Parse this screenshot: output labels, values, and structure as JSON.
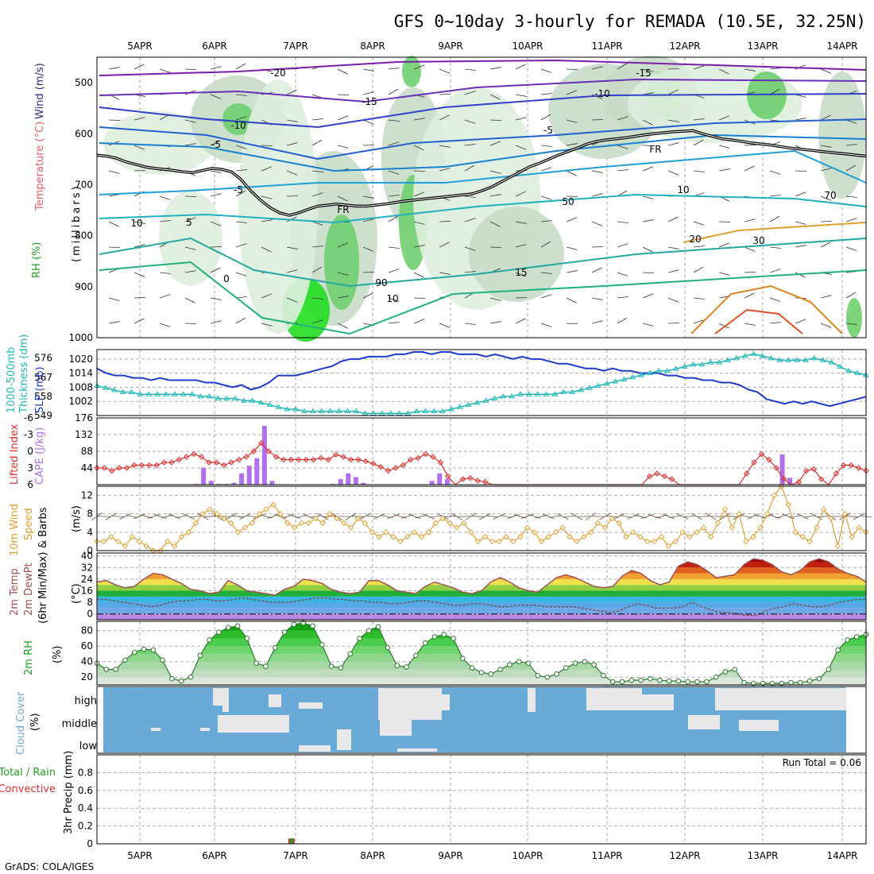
{
  "title": "GFS 0~10day 3-hourly for REMADA (10.5E, 32.25N)",
  "footer": "GrADS: COLA/IGES",
  "run_total": "Run Total = 0.06",
  "dates": [
    "5APR",
    "6APR",
    "7APR",
    "8APR",
    "9APR",
    "10APR",
    "11APR",
    "12APR",
    "13APR",
    "14APR"
  ],
  "colors": {
    "slp": "#1c3cc8",
    "thickness": "#20b8b8",
    "lifted_index": "#e03030",
    "cape": "#b070f0",
    "wind": "#e0a030",
    "temp_line": "#a05050",
    "rh": "#20a020",
    "cloud": "#6aaad6",
    "cloud_gap": "#e8e8ea"
  },
  "panels": {
    "upper": {
      "ylabel_rh": "RH (%)",
      "ylabel_temp": "Temperature (°C)",
      "ylabel_wind": "Wind (m/s)",
      "ylabel_units": "(millibars)",
      "contour_labels": [
        "-20",
        "-15",
        "-15",
        "-10",
        "-10",
        "-5",
        "-5",
        "-5",
        "0",
        "5",
        "10",
        "10",
        "15",
        "20",
        "10",
        "FR",
        "FR",
        "30",
        "50",
        "70",
        "90"
      ]
    },
    "slp": {
      "label_left": "1000-500mb",
      "label_left2": "Thickness (dm)",
      "label_right": "SLP (mb)"
    },
    "cape": {
      "label_left": "Lifted Index",
      "label_right": "CAPE (J/kg)"
    },
    "wind10": {
      "label1": "10m Wind",
      "label2": "Speed",
      "label3": "& Barbs",
      "units": "(m/s)"
    },
    "temp": {
      "label1": "2m Temp",
      "label2": "2m DewPt",
      "label3": "(6hr Min/Max)",
      "units": "(°C)"
    },
    "rh": {
      "label1": "2m RH",
      "units": "(%)"
    },
    "cloud": {
      "label1": "Cloud Cover",
      "units": "(%)",
      "levels": [
        "high",
        "middle",
        "low"
      ]
    },
    "precip": {
      "label1": "Total / Rain",
      "label2": "Convective",
      "label3": "3hr Precip (mm)"
    }
  },
  "chart_data": [
    {
      "type": "contour",
      "panel": "pressure-time cross-section",
      "yticks": [
        "500",
        "600",
        "700",
        "800",
        "900",
        "1000"
      ],
      "freezing_level_mb": [
        642,
        644,
        648,
        655,
        660,
        665,
        668,
        670,
        672,
        675,
        676,
        672,
        668,
        670,
        675,
        690,
        712,
        730,
        745,
        755,
        760,
        755,
        748,
        742,
        740,
        738,
        740,
        742,
        742,
        740,
        738,
        735,
        732,
        730,
        728,
        726,
        724,
        722,
        720,
        718,
        712,
        705,
        695,
        685,
        675,
        665,
        658,
        650,
        642,
        635,
        628,
        620,
        615,
        612,
        610,
        608,
        605,
        602,
        600,
        598,
        596,
        595,
        594,
        600,
        605,
        610,
        612,
        615,
        618,
        620,
        622,
        625,
        628,
        630,
        632,
        634,
        636,
        638,
        640,
        642,
        644
      ]
    },
    {
      "type": "line",
      "panel": "SLP / thickness",
      "yticks_left": [
        "549",
        "558",
        "567",
        "576"
      ],
      "yticks_right": [
        "1002",
        "1008",
        "1014",
        "1020"
      ],
      "series": [
        {
          "name": "SLP (mb)",
          "values": [
            1016,
            1014,
            1013,
            1013,
            1012,
            1012,
            1011,
            1012,
            1011,
            1011,
            1011,
            1011,
            1010,
            1010,
            1009,
            1008,
            1009,
            1007,
            1008,
            1010,
            1013,
            1013,
            1013,
            1014,
            1015,
            1016,
            1017,
            1019,
            1020,
            1020,
            1021,
            1021,
            1021,
            1022,
            1022,
            1023,
            1023,
            1022,
            1023,
            1023,
            1022,
            1022,
            1022,
            1021,
            1022,
            1021,
            1020,
            1021,
            1020,
            1020,
            1019,
            1018,
            1018,
            1017,
            1016,
            1016,
            1015,
            1016,
            1015,
            1015,
            1014,
            1014,
            1014,
            1013,
            1013,
            1012,
            1012,
            1011,
            1011,
            1010,
            1010,
            1009,
            1007,
            1006,
            1003,
            1002,
            1001,
            1002,
            1001,
            1002,
            1001,
            1000,
            1001,
            1002,
            1003,
            1004
          ]
        },
        {
          "name": "Thickness (dm)",
          "values": [
            563,
            562,
            561,
            560,
            560,
            559,
            559,
            559,
            559,
            559,
            559,
            559,
            558,
            558,
            557,
            557,
            557,
            556,
            556,
            555,
            554,
            553,
            552,
            552,
            551,
            551,
            551,
            551,
            551,
            551,
            551,
            550,
            550,
            550,
            550,
            550,
            550,
            551,
            551,
            551,
            551,
            552,
            553,
            554,
            555,
            556,
            557,
            558,
            558,
            559,
            559,
            559,
            559,
            559,
            560,
            560,
            561,
            562,
            563,
            564,
            565,
            566,
            567,
            568,
            569,
            570,
            570,
            571,
            572,
            573,
            573,
            574,
            574,
            575,
            576,
            577,
            578,
            577,
            576,
            575,
            575,
            575,
            575,
            576,
            575,
            574,
            572,
            570,
            569,
            568
          ]
        }
      ]
    },
    {
      "type": "bar",
      "panel": "Lifted Index / CAPE",
      "yticks_left": [
        "-6",
        "-3",
        "0",
        "3",
        "6"
      ],
      "yticks_right": [
        "44",
        "88",
        "132",
        "176"
      ],
      "series": [
        {
          "name": "CAPE (J/kg)",
          "values": [
            0,
            0,
            0,
            0,
            0,
            0,
            0,
            0,
            0,
            0,
            0,
            0,
            0,
            2,
            45,
            10,
            2,
            2,
            5,
            30,
            50,
            70,
            155,
            10,
            0,
            0,
            0,
            0,
            0,
            0,
            0,
            2,
            15,
            30,
            20,
            5,
            0,
            0,
            0,
            0,
            0,
            0,
            0,
            0,
            10,
            30,
            15,
            0,
            0,
            0,
            0,
            0,
            0,
            0,
            0,
            0,
            0,
            0,
            0,
            0,
            0,
            0,
            0,
            0,
            0,
            0,
            0,
            0,
            0,
            0,
            0,
            0,
            0,
            0,
            0,
            0,
            0,
            0,
            0,
            0,
            0,
            0,
            0,
            0,
            0,
            0,
            0,
            0,
            0,
            0,
            80,
            18,
            0,
            0,
            0,
            0,
            0,
            0,
            0,
            0,
            0,
            0
          ]
        },
        {
          "name": "Lifted Index",
          "values": [
            3,
            3,
            3.5,
            3,
            3,
            2.5,
            2.5,
            2.5,
            2.5,
            2,
            2,
            1.5,
            1,
            0.5,
            1,
            2,
            2,
            2.5,
            2,
            1.5,
            1,
            0,
            -1.5,
            0,
            1,
            1.5,
            1.5,
            1.5,
            1.5,
            1.5,
            1.2,
            1.5,
            0.6,
            1,
            1.5,
            1.5,
            1.8,
            2.2,
            2.8,
            3.5,
            3,
            2.5,
            1.5,
            1.2,
            0.5,
            1,
            2,
            4.5,
            6,
            5,
            4.8,
            5.3,
            5.5,
            6,
            7,
            7,
            7,
            7,
            7,
            7,
            7,
            7,
            7,
            7,
            7,
            7,
            7,
            7,
            7,
            7,
            7,
            7,
            7,
            7,
            4.5,
            4,
            4.5,
            5,
            6.5,
            7,
            7,
            7,
            7,
            7,
            7,
            7,
            7,
            4,
            2,
            0.5,
            1.5,
            3,
            5,
            7,
            5.5,
            3.5,
            3.2,
            5,
            7,
            4,
            2.5,
            2.5,
            3,
            3.5
          ]
        }
      ]
    },
    {
      "type": "line",
      "panel": "10m wind speed",
      "yticks": [
        "0",
        "4",
        "8",
        "12"
      ],
      "values": [
        2,
        2,
        3,
        2,
        1,
        3,
        2,
        1,
        0,
        0,
        2,
        1,
        3,
        4,
        6,
        8,
        9,
        8,
        7,
        6,
        4,
        5,
        6,
        8,
        9,
        10,
        8,
        6,
        5,
        6,
        6,
        7,
        6,
        8,
        7,
        6,
        5,
        7,
        6,
        4,
        3,
        4,
        3,
        2,
        3,
        4,
        3,
        4,
        6,
        7,
        6,
        5,
        6,
        4,
        2,
        3,
        2,
        2,
        3,
        2,
        3,
        5,
        4,
        2,
        3,
        4,
        5,
        3,
        2,
        3,
        4,
        6,
        5,
        7,
        6,
        3,
        4,
        3,
        2,
        2,
        3,
        1,
        2,
        4,
        3,
        4,
        5,
        3,
        6,
        9,
        5,
        8,
        2,
        3,
        5,
        8,
        12,
        14,
        10,
        4,
        3,
        2,
        5,
        9,
        7,
        1,
        8,
        3,
        5,
        4
      ]
    },
    {
      "type": "area",
      "panel": "2m temp / dewpoint",
      "yticks": [
        "0",
        "8",
        "16",
        "24",
        "32",
        "40"
      ],
      "series": [
        {
          "name": "2m Temp",
          "values": [
            22,
            23,
            20,
            18,
            19,
            24,
            28,
            27,
            24,
            21,
            17,
            16,
            14,
            15,
            23,
            20,
            16,
            15,
            14,
            13,
            17,
            19,
            24,
            23,
            21,
            17,
            15,
            14,
            15,
            23,
            23,
            20,
            16,
            15,
            14,
            19,
            22,
            20,
            18,
            15,
            14,
            16,
            22,
            25,
            22,
            18,
            16,
            15,
            20,
            25,
            27,
            25,
            22,
            19,
            18,
            19,
            26,
            30,
            28,
            23,
            20,
            22,
            33,
            36,
            34,
            30,
            25,
            26,
            27,
            34,
            38,
            37,
            34,
            29,
            27,
            30,
            36,
            38,
            36,
            31,
            28,
            26,
            22
          ]
        },
        {
          "name": "2m DewPt",
          "values": [
            10,
            10,
            9,
            8,
            7,
            6,
            5,
            6,
            8,
            9,
            9,
            10,
            10,
            9,
            9,
            10,
            11,
            10,
            9,
            8,
            8,
            8,
            9,
            10,
            11,
            11,
            10,
            10,
            9,
            9,
            8,
            8,
            7,
            7,
            8,
            9,
            9,
            8,
            7,
            6,
            6,
            7,
            7,
            6,
            5,
            5,
            6,
            6,
            6,
            5,
            5,
            5,
            5,
            4,
            3,
            2,
            1,
            2,
            5,
            7,
            6,
            4,
            4,
            4,
            5,
            8,
            5,
            3,
            1,
            1,
            0,
            -1,
            -1,
            2,
            4,
            5,
            7,
            6,
            5,
            5,
            6,
            8,
            9,
            10,
            10
          ]
        }
      ]
    },
    {
      "type": "area",
      "panel": "2m RH",
      "yticks": [
        "20",
        "40",
        "60",
        "80"
      ],
      "values": [
        38,
        30,
        30,
        42,
        52,
        56,
        55,
        42,
        18,
        15,
        20,
        48,
        68,
        78,
        84,
        86,
        70,
        38,
        34,
        58,
        78,
        88,
        90,
        86,
        62,
        34,
        32,
        50,
        70,
        80,
        85,
        58,
        35,
        33,
        48,
        64,
        72,
        75,
        70,
        44,
        32,
        26,
        24,
        30,
        36,
        40,
        38,
        22,
        20,
        24,
        32,
        38,
        40,
        36,
        22,
        14,
        14,
        16,
        16,
        18,
        16,
        15,
        15,
        14,
        14,
        14,
        20,
        27,
        30,
        13,
        12,
        12,
        12,
        12,
        13,
        13,
        15,
        18,
        30,
        55,
        68,
        72,
        75
      ]
    },
    {
      "type": "heatmap",
      "panel": "cloud cover",
      "levels": [
        "high",
        "middle",
        "low"
      ],
      "values": [
        0,
        0,
        0,
        0,
        0,
        0,
        0,
        0,
        0,
        0,
        0,
        0,
        0,
        0,
        0,
        0,
        0,
        0,
        0,
        0,
        0,
        0,
        0,
        0,
        0,
        0,
        0,
        0,
        0,
        0,
        0,
        0,
        0,
        0,
        0,
        0,
        0,
        0,
        0,
        0,
        0,
        0,
        0,
        0,
        0,
        0,
        0,
        0,
        0,
        0,
        0,
        0,
        0,
        0,
        0,
        0,
        0,
        0,
        0,
        0,
        0,
        0,
        0,
        0,
        0,
        0,
        0,
        0,
        0,
        0,
        0,
        0,
        0,
        0,
        0,
        0,
        0,
        0,
        0,
        0,
        0,
        0,
        0,
        0,
        0,
        0,
        0,
        0,
        0,
        0,
        0,
        0,
        0,
        0,
        0,
        0,
        0,
        0,
        0,
        0
      ]
    },
    {
      "type": "bar",
      "panel": "3hr precip",
      "yticks": [
        "0",
        "0.2",
        "0.4",
        "0.6",
        "0.8"
      ],
      "values": [
        0,
        0,
        0,
        0,
        0,
        0,
        0,
        0,
        0,
        0,
        0,
        0,
        0,
        0,
        0,
        0,
        0,
        0,
        0,
        0,
        0,
        0.06,
        0,
        0,
        0,
        0,
        0,
        0,
        0,
        0,
        0,
        0,
        0,
        0,
        0,
        0,
        0,
        0,
        0,
        0,
        0,
        0,
        0,
        0,
        0,
        0,
        0,
        0,
        0,
        0,
        0,
        0,
        0,
        0,
        0,
        0,
        0,
        0,
        0,
        0,
        0,
        0,
        0,
        0,
        0,
        0,
        0,
        0,
        0,
        0,
        0,
        0,
        0,
        0,
        0,
        0,
        0,
        0,
        0,
        0,
        0,
        0,
        0,
        0
      ]
    }
  ]
}
